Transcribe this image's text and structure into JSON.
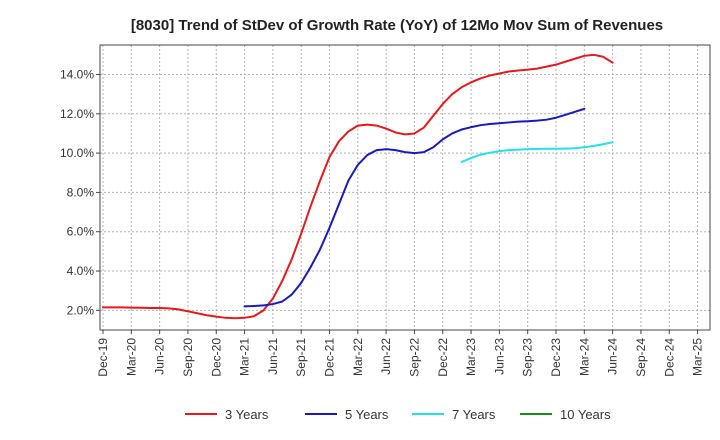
{
  "chart_data": {
    "type": "line",
    "title": "[8030]  Trend of StDev of Growth Rate (YoY) of 12Mo Mov Sum of Revenues",
    "xlabel": "",
    "ylabel": "",
    "ylim": [
      1.0,
      15.5
    ],
    "yticks": [
      2.0,
      4.0,
      6.0,
      8.0,
      10.0,
      12.0,
      14.0
    ],
    "ytick_labels": [
      "2.0%",
      "4.0%",
      "6.0%",
      "8.0%",
      "10.0%",
      "12.0%",
      "14.0%"
    ],
    "x_tick_labels": [
      "Dec-19",
      "Mar-20",
      "Jun-20",
      "Sep-20",
      "Dec-20",
      "Mar-21",
      "Jun-21",
      "Sep-21",
      "Dec-21",
      "Mar-22",
      "Jun-22",
      "Sep-22",
      "Dec-22",
      "Mar-23",
      "Jun-23",
      "Sep-23",
      "Dec-23",
      "Mar-24",
      "Jun-24",
      "Sep-24",
      "Dec-24",
      "Mar-25"
    ],
    "x_count": 65,
    "grid": true,
    "legend_position": "bottom",
    "series": [
      {
        "name": "3 Years",
        "color": "#e31a1c",
        "start": 0,
        "values": [
          2.15,
          2.15,
          2.15,
          2.14,
          2.13,
          2.12,
          2.12,
          2.1,
          2.05,
          1.95,
          1.85,
          1.75,
          1.68,
          1.62,
          1.6,
          1.62,
          1.7,
          2.0,
          2.6,
          3.5,
          4.6,
          5.9,
          7.3,
          8.6,
          9.8,
          10.6,
          11.1,
          11.4,
          11.45,
          11.4,
          11.25,
          11.05,
          10.95,
          11.0,
          11.3,
          11.9,
          12.5,
          13.0,
          13.35,
          13.6,
          13.8,
          13.95,
          14.05,
          14.15,
          14.2,
          14.25,
          14.3,
          14.4,
          14.5,
          14.65,
          14.8,
          14.95,
          15.0,
          14.9,
          14.6
        ]
      },
      {
        "name": "5 Years",
        "color": "#1a1ab8",
        "start": 15,
        "values": [
          2.2,
          2.22,
          2.25,
          2.32,
          2.45,
          2.8,
          3.4,
          4.2,
          5.1,
          6.2,
          7.4,
          8.6,
          9.4,
          9.9,
          10.15,
          10.2,
          10.15,
          10.05,
          10.0,
          10.05,
          10.3,
          10.7,
          11.0,
          11.2,
          11.32,
          11.42,
          11.48,
          11.52,
          11.56,
          11.6,
          11.62,
          11.65,
          11.7,
          11.8,
          11.95,
          12.1,
          12.25
        ]
      },
      {
        "name": "7 Years",
        "color": "#26e0e8",
        "start": 38,
        "values": [
          9.55,
          9.75,
          9.92,
          10.02,
          10.1,
          10.15,
          10.18,
          10.2,
          10.21,
          10.22,
          10.22,
          10.23,
          10.25,
          10.3,
          10.37,
          10.45,
          10.55
        ]
      },
      {
        "name": "10 Years",
        "color": "#1a8a1a",
        "start": 0,
        "values": []
      }
    ]
  }
}
